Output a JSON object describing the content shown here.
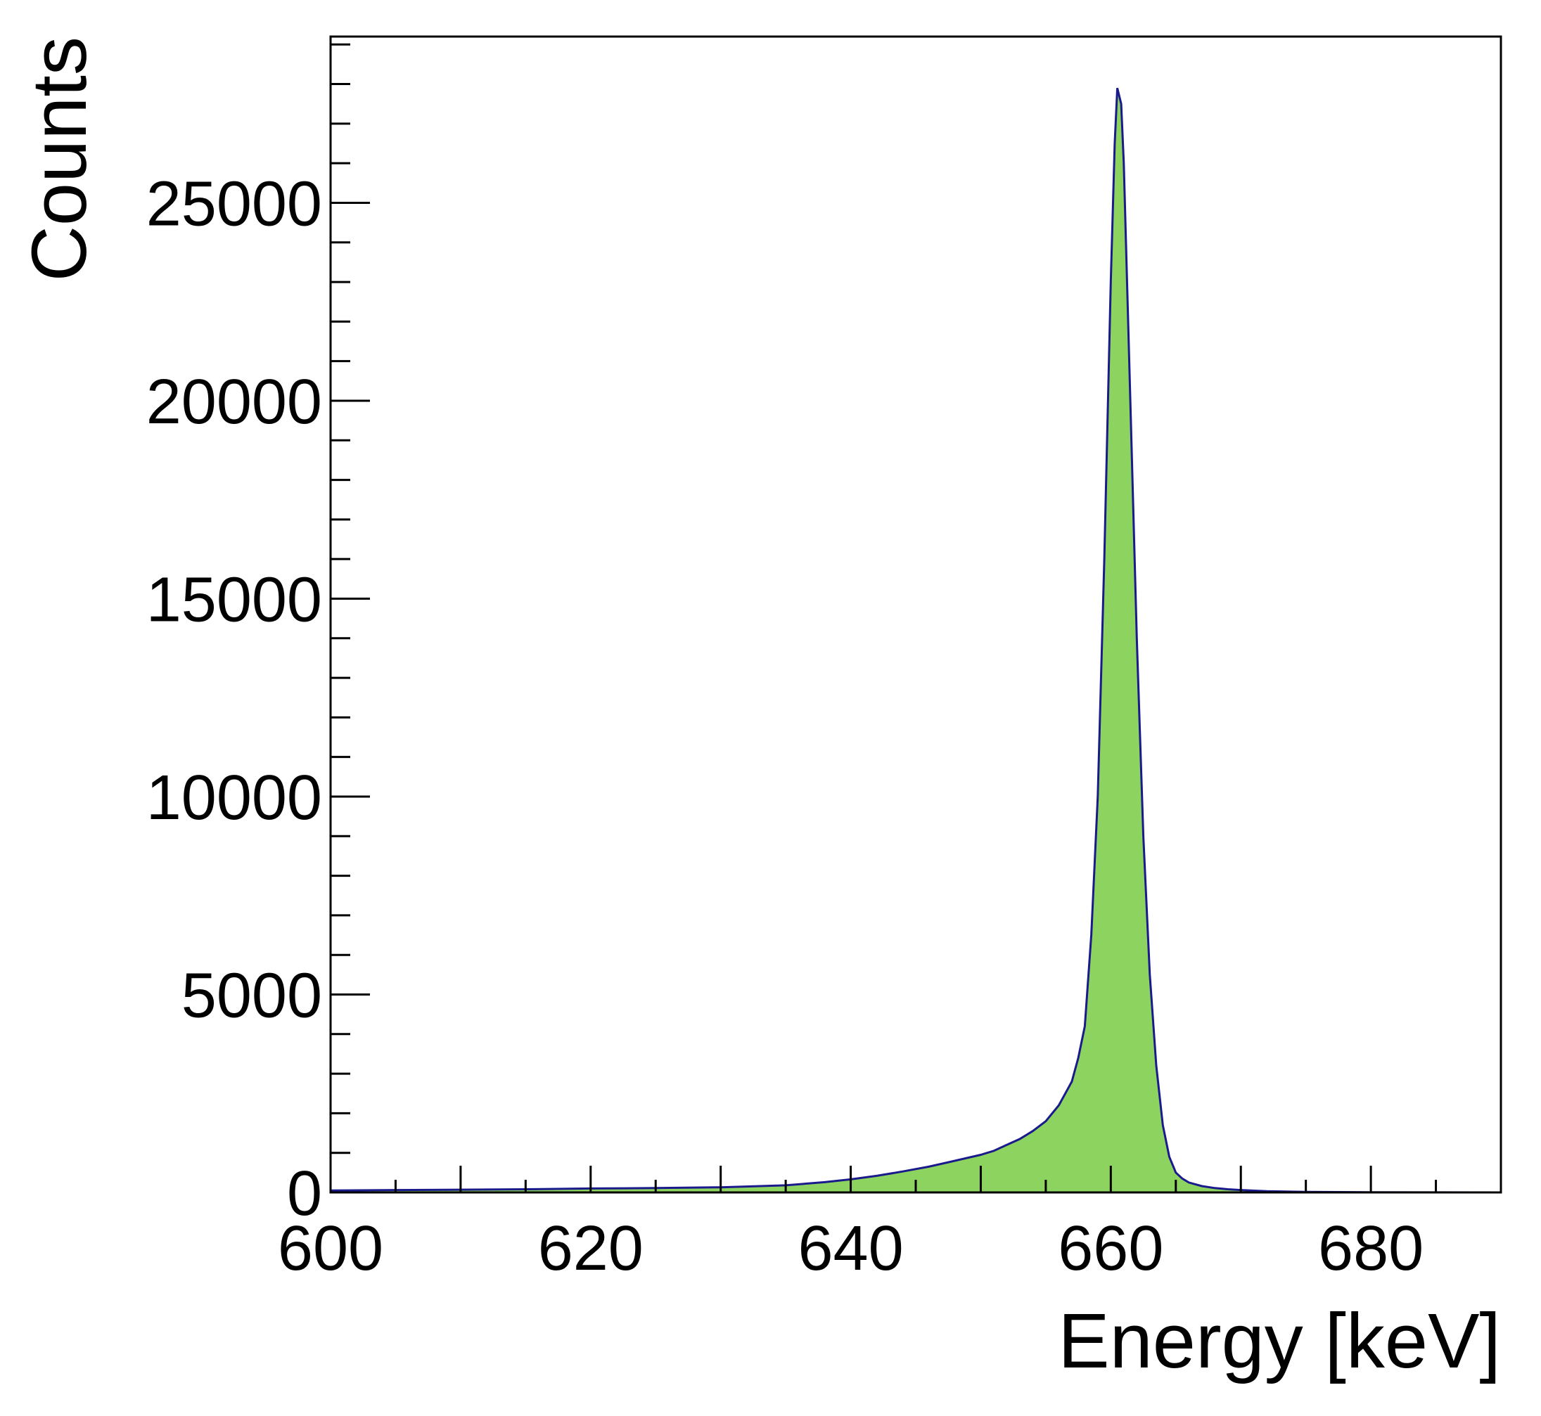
{
  "chart_data": {
    "type": "area",
    "title": "",
    "xlabel": "Energy [keV]",
    "ylabel": "Counts",
    "xlim": [
      600,
      690
    ],
    "ylim": [
      0,
      29200
    ],
    "x_ticks": [
      600,
      620,
      640,
      660,
      680
    ],
    "x_tick_labels": [
      "600",
      "620",
      "640",
      "660",
      "680"
    ],
    "y_ticks": [
      0,
      5000,
      10000,
      15000,
      20000,
      25000
    ],
    "y_tick_labels": [
      "0",
      "5000",
      "10000",
      "15000",
      "20000",
      "25000"
    ],
    "grid": false,
    "legend": "none",
    "fill_color": "#8cd35f",
    "line_color": "#1a1a8c",
    "series": [
      {
        "x": [
          600,
          605,
          610,
          615,
          620,
          625,
          630,
          635,
          638,
          640,
          642,
          644,
          646,
          648,
          650,
          651,
          652,
          653,
          654,
          655,
          656,
          657,
          657.5,
          658,
          658.5,
          659,
          659.5,
          660,
          660.3,
          660.5,
          660.8,
          661,
          661.5,
          662,
          662.5,
          663,
          663.5,
          664,
          664.5,
          665,
          665.5,
          666,
          667,
          668,
          669,
          670,
          672,
          675,
          680,
          685,
          690
        ],
        "values": [
          50,
          60,
          70,
          80,
          100,
          110,
          130,
          180,
          260,
          330,
          420,
          530,
          650,
          800,
          950,
          1050,
          1200,
          1350,
          1550,
          1800,
          2200,
          2800,
          3400,
          4200,
          6500,
          10000,
          16000,
          23000,
          26500,
          27900,
          27500,
          26000,
          20000,
          14000,
          9000,
          5500,
          3200,
          1700,
          900,
          500,
          350,
          250,
          160,
          110,
          80,
          60,
          30,
          15,
          5,
          2,
          0
        ]
      }
    ]
  }
}
